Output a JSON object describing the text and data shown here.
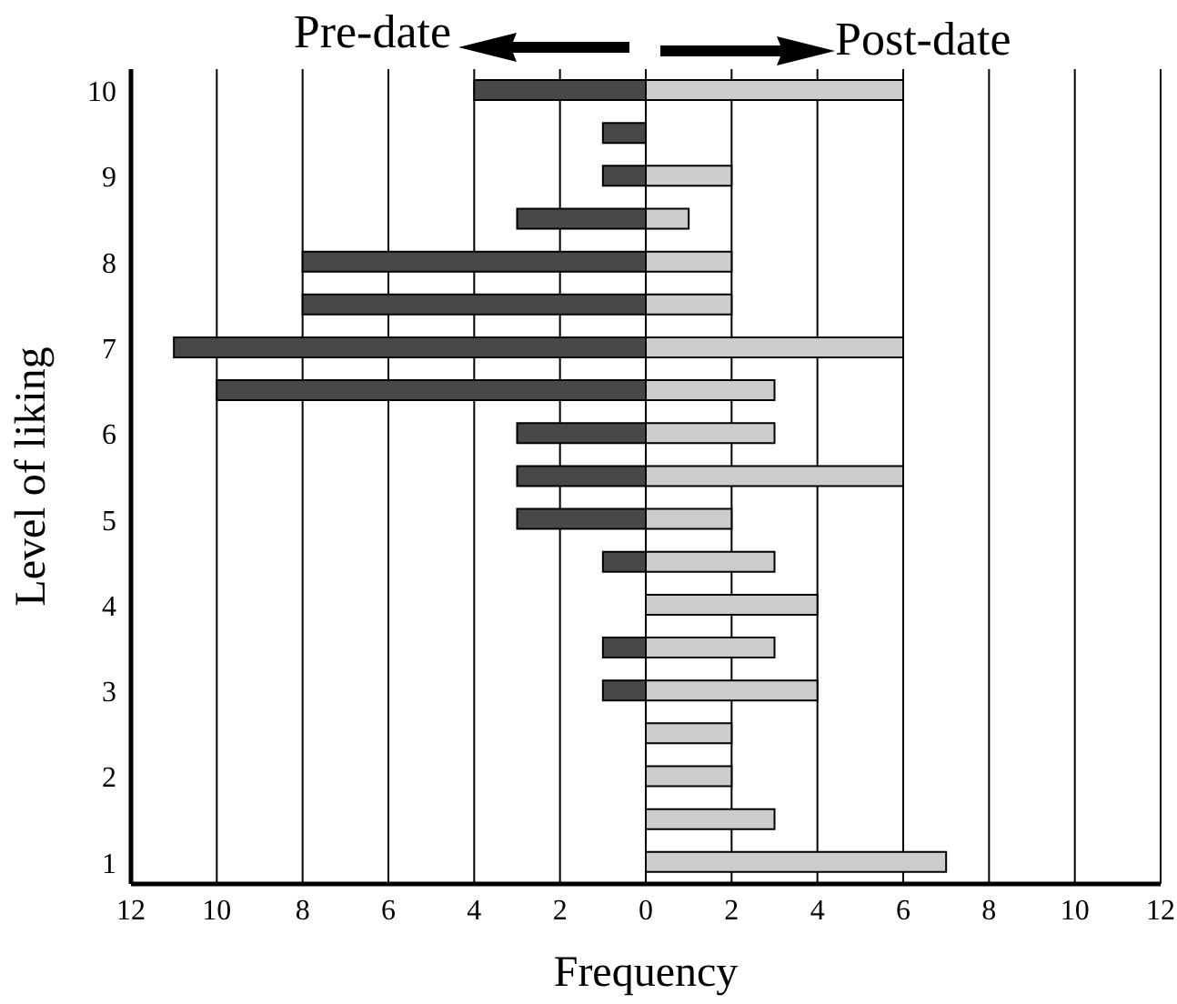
{
  "chart_data": {
    "type": "bar",
    "orientation": "horizontal",
    "stacked": true,
    "xlabel": "Frequency",
    "ylabel": "Level of liking",
    "categories": [
      "10",
      null,
      "9",
      null,
      "8",
      null,
      "7",
      null,
      "6",
      null,
      "5",
      null,
      "4",
      null,
      "3",
      null,
      "2",
      null,
      "1"
    ],
    "series": [
      {
        "color": "#484848",
        "values": [
          -4,
          -1,
          -1,
          -3,
          -8,
          -8,
          -11,
          -10,
          -3,
          -3,
          -3,
          -1,
          null,
          -1,
          -1,
          null,
          null,
          null,
          null
        ]
      },
      {
        "color": "#cccccc",
        "values": [
          6,
          null,
          2,
          1,
          2,
          2,
          6,
          3,
          3,
          6,
          2,
          3,
          4,
          3,
          4,
          2,
          2,
          3,
          7
        ]
      }
    ],
    "xlim": [
      -12,
      12
    ],
    "xticks": [
      {
        "value": -12,
        "label": "12"
      },
      {
        "value": -10,
        "label": "10"
      },
      {
        "value": -8,
        "label": "8"
      },
      {
        "value": -6,
        "label": "6"
      },
      {
        "value": -4,
        "label": "4"
      },
      {
        "value": -2,
        "label": "2"
      },
      0,
      2,
      4,
      6,
      8,
      10,
      12
    ],
    "grid": "x",
    "annotations": [
      "Pre-date",
      "Post-date"
    ]
  }
}
